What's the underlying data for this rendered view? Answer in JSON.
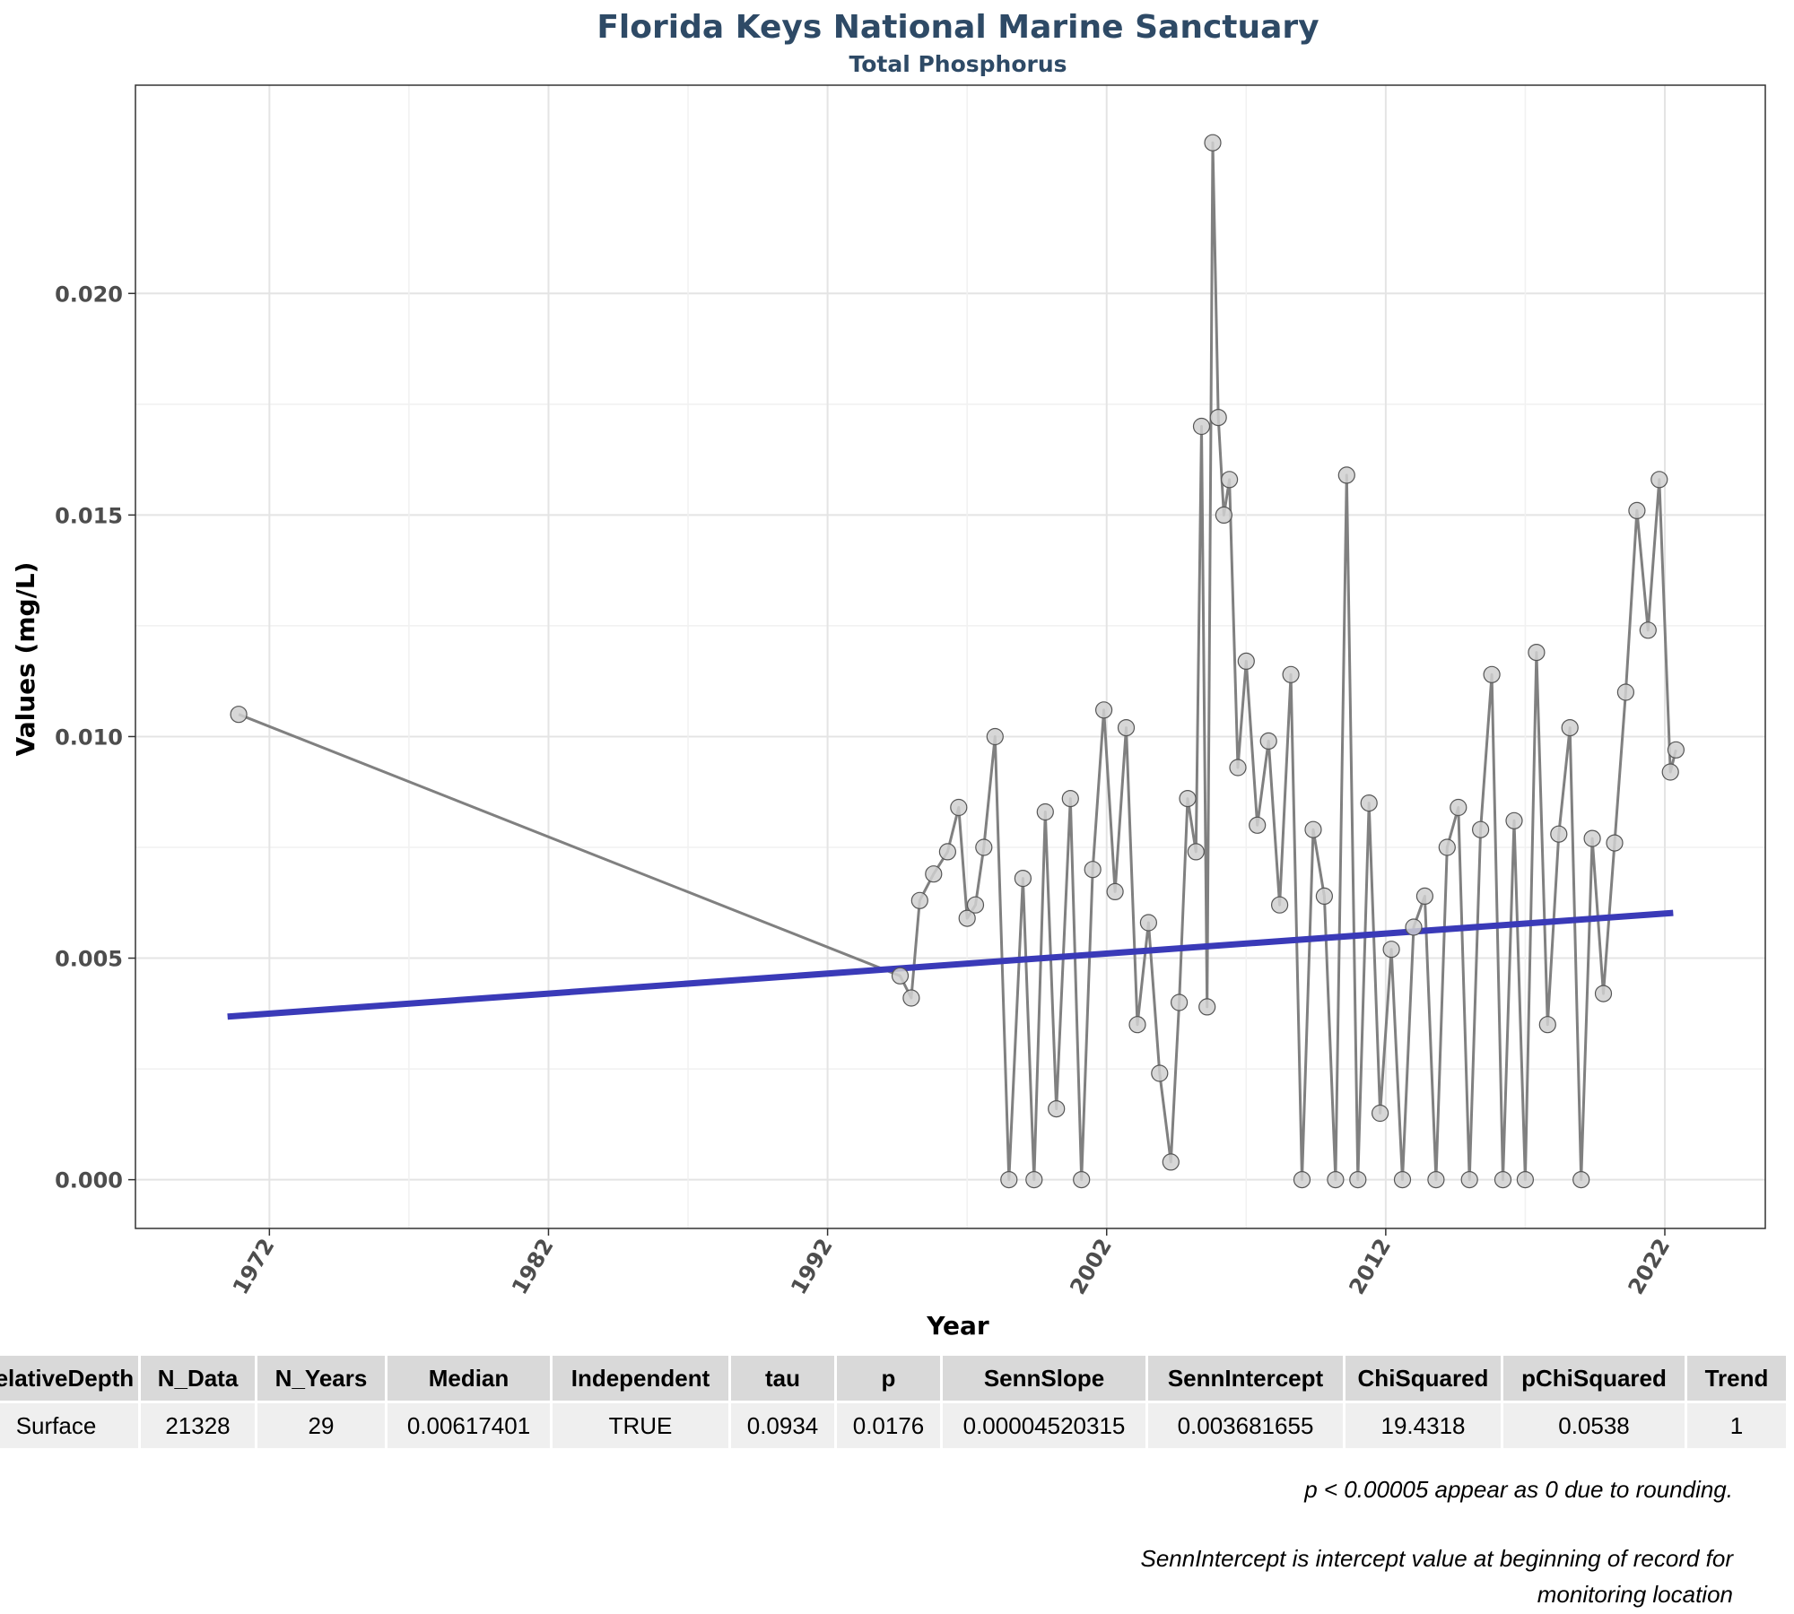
{
  "chart_data": {
    "type": "line",
    "title": "Florida Keys National Marine Sanctuary",
    "subtitle": "Total Phosphorus",
    "xlabel": "Year",
    "ylabel": "Values (mg/L)",
    "x_ticks": [
      "1972",
      "1982",
      "1992",
      "2002",
      "2012",
      "2022"
    ],
    "y_ticks": [
      "0.000",
      "0.005",
      "0.010",
      "0.015",
      "0.020"
    ],
    "xlim": [
      1967.2,
      2025.6
    ],
    "ylim": [
      -0.0011,
      0.0247
    ],
    "grid": true,
    "colors": {
      "title": "#2e4a66",
      "observed_line": "#808080",
      "points_fill": "#d0d0d0",
      "points_stroke": "#555555",
      "trend_line": "#3a3ab8"
    },
    "series": [
      {
        "kind": "observed",
        "x": [
          1970.9,
          1994.6,
          1995.0,
          1995.3,
          1995.8,
          1996.3,
          1996.7,
          1997.0,
          1997.3,
          1997.6,
          1998.0,
          1998.5,
          1999.0,
          1999.4,
          1999.8,
          2000.2,
          2000.7,
          2001.1,
          2001.5,
          2001.9,
          2002.3,
          2002.7,
          2003.1,
          2003.5,
          2003.9,
          2004.3,
          2004.6,
          2004.9,
          2005.2,
          2005.4,
          2005.6,
          2005.8,
          2006.0,
          2006.2,
          2006.4,
          2006.7,
          2007.0,
          2007.4,
          2007.8,
          2008.2,
          2008.6,
          2009.0,
          2009.4,
          2009.8,
          2010.2,
          2010.6,
          2011.0,
          2011.4,
          2011.8,
          2012.2,
          2012.6,
          2013.0,
          2013.4,
          2013.8,
          2014.2,
          2014.6,
          2015.0,
          2015.4,
          2015.8,
          2016.2,
          2016.6,
          2017.0,
          2017.4,
          2017.8,
          2018.2,
          2018.6,
          2019.0,
          2019.4,
          2019.8,
          2020.2,
          2020.6,
          2021.0,
          2021.4,
          2021.8,
          2022.2,
          2022.4
        ],
        "values": [
          0.0105,
          0.0046,
          0.0041,
          0.0063,
          0.0069,
          0.0074,
          0.0084,
          0.0059,
          0.0062,
          0.0075,
          0.01,
          0.0,
          0.0068,
          0.0,
          0.0083,
          0.0016,
          0.0086,
          0.0,
          0.007,
          0.0106,
          0.0065,
          0.0102,
          0.0035,
          0.0058,
          0.0024,
          0.0004,
          0.004,
          0.0086,
          0.0074,
          0.017,
          0.0039,
          0.0234,
          0.0172,
          0.015,
          0.0158,
          0.0093,
          0.0117,
          0.008,
          0.0099,
          0.0062,
          0.0114,
          0.0,
          0.0079,
          0.0064,
          0.0,
          0.0159,
          0.0,
          0.0085,
          0.0015,
          0.0052,
          0.0,
          0.0057,
          0.0064,
          0.0,
          0.0075,
          0.0084,
          0.0,
          0.0079,
          0.0114,
          0.0,
          0.0081,
          0.0,
          0.0119,
          0.0035,
          0.0078,
          0.0102,
          0.0,
          0.0077,
          0.0042,
          0.0076,
          0.011,
          0.0151,
          0.0124,
          0.0158,
          0.0092,
          0.0097
        ]
      },
      {
        "kind": "trend",
        "x": [
          1970.5,
          2022.3
        ],
        "values": [
          0.00368,
          0.00602
        ]
      }
    ]
  },
  "table": {
    "headers": [
      "RelativeDepth",
      "N_Data",
      "N_Years",
      "Median",
      "Independent",
      "tau",
      "p",
      "SennSlope",
      "SennIntercept",
      "ChiSquared",
      "pChiSquared",
      "Trend"
    ],
    "row": [
      "Surface",
      "21328",
      "29",
      "0.00617401",
      "TRUE",
      "0.0934",
      "0.0176",
      "0.00004520315",
      "0.003681655",
      "19.4318",
      "0.0538",
      "1"
    ]
  },
  "notes": {
    "note1": "p < 0.00005 appear as 0 due to rounding.",
    "note2": "SennIntercept is intercept value at beginning of record for monitoring location"
  }
}
